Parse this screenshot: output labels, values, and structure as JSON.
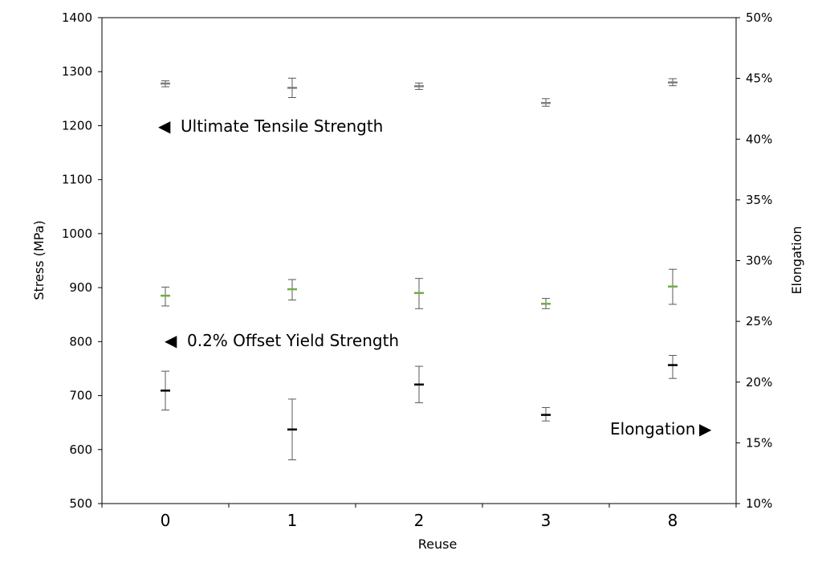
{
  "chart_data": {
    "type": "scatter",
    "categories": [
      "0",
      "1",
      "2",
      "3",
      "8"
    ],
    "xlabel": "Reuse",
    "ylabel": "Stress (MPa)",
    "y2label": "Elongation",
    "ylim": [
      500,
      1400
    ],
    "y2lim": [
      10,
      50
    ],
    "yticks": [
      "500",
      "600",
      "700",
      "800",
      "900",
      "1000",
      "1100",
      "1200",
      "1300",
      "1400"
    ],
    "y2ticks": [
      "10%",
      "15%",
      "20%",
      "25%",
      "30%",
      "35%",
      "40%",
      "45%",
      "50%"
    ],
    "grid": false,
    "series": [
      {
        "name": "Ultimate Tensile Strength",
        "axis": "left",
        "color": "#7f7f7f",
        "values": [
          1278,
          1270,
          1273,
          1242,
          1280
        ],
        "err_low": [
          1272,
          1252,
          1267,
          1236,
          1274
        ],
        "err_high": [
          1283,
          1288,
          1279,
          1250,
          1287
        ]
      },
      {
        "name": "0.2% Offset Yield Strength",
        "axis": "left",
        "color": "#70ad47",
        "values": [
          885,
          897,
          890,
          870,
          902
        ],
        "err_low": [
          866,
          877,
          861,
          861,
          869
        ],
        "err_high": [
          901,
          915,
          917,
          880,
          934
        ]
      },
      {
        "name": "Elongation",
        "axis": "right",
        "color": "#000000",
        "values": [
          19.3,
          16.1,
          19.8,
          17.3,
          21.4
        ],
        "err_low": [
          17.7,
          13.6,
          18.3,
          16.8,
          20.3
        ],
        "err_high": [
          20.9,
          18.6,
          21.3,
          17.9,
          22.2
        ]
      }
    ],
    "annotations": [
      {
        "text": "Ultimate Tensile Strength",
        "marker": "◀",
        "marker_color": "#a6a6a6"
      },
      {
        "text": "0.2% Offset Yield Strength",
        "marker": "◀",
        "marker_color": "#70ad47"
      },
      {
        "text": "Elongation",
        "marker": "▶",
        "marker_color": "#000000"
      }
    ]
  }
}
